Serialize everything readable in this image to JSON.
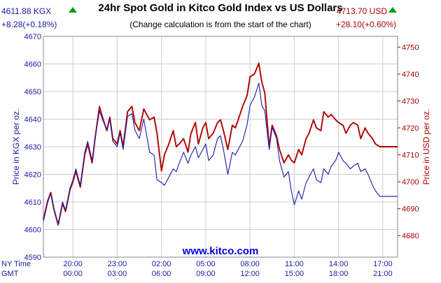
{
  "chart_data": {
    "type": "line",
    "title": "24hr Spot Gold in Kitco Gold Index vs US Dollars",
    "subtitle": "(Change calculation is from the start of the chart)",
    "kgx_price": "4611.88 KGX",
    "kgx_change": "+8.28(+0.18%)",
    "usd_price": "4713.70 USD",
    "usd_change": "+28.10(+0.60%)",
    "ylabel_left": "Price in KGX per oz.",
    "ylabel_right": "Price in USD per oz.",
    "ylim_left": [
      4590,
      4670
    ],
    "ylim_right": [
      4672,
      4754
    ],
    "yticks_left": [
      "4590",
      "4600",
      "4610",
      "4620",
      "4630",
      "4640",
      "4650",
      "4660",
      "4670"
    ],
    "yticks_right": [
      "4680",
      "4690",
      "4700",
      "4710",
      "4720",
      "4730",
      "4740",
      "4750"
    ],
    "xlim_hours": [
      0,
      24
    ],
    "row_label_ny": "NY Time",
    "row_label_gmt": "GMT",
    "xticks": [
      {
        "h": 2,
        "ny": "20:00",
        "gmt": "00:00"
      },
      {
        "h": 5,
        "ny": "23:00",
        "gmt": "03:00"
      },
      {
        "h": 8,
        "ny": "02:00",
        "gmt": "06:00"
      },
      {
        "h": 11,
        "ny": "05:00",
        "gmt": "09:00"
      },
      {
        "h": 14,
        "ny": "08:00",
        "gmt": "12:00"
      },
      {
        "h": 17,
        "ny": "11:00",
        "gmt": "15:00"
      },
      {
        "h": 20,
        "ny": "14:00",
        "gmt": "18:00"
      },
      {
        "h": 23,
        "ny": "17:00",
        "gmt": "21:00"
      }
    ],
    "grid": true,
    "watermark": "www.kitco.com",
    "colors": {
      "kgx": "#1a1aa8",
      "usd": "#b00000",
      "grid": "#cccccc",
      "up_arrow": "#00a000"
    },
    "series": [
      {
        "name": "KGX",
        "axis": "left",
        "x": [
          0,
          0.3,
          0.5,
          0.7,
          1.0,
          1.3,
          1.5,
          1.8,
          2.0,
          2.2,
          2.5,
          2.8,
          3.0,
          3.3,
          3.5,
          3.8,
          4.0,
          4.3,
          4.5,
          4.7,
          5.0,
          5.2,
          5.4,
          5.7,
          6.0,
          6.2,
          6.5,
          6.8,
          7.0,
          7.2,
          7.5,
          7.7,
          8.0,
          8.2,
          8.5,
          8.8,
          9.0,
          9.2,
          9.5,
          9.8,
          10.0,
          10.3,
          10.5,
          10.8,
          11.0,
          11.2,
          11.5,
          11.8,
          12.0,
          12.2,
          12.5,
          12.8,
          13.0,
          13.2,
          13.5,
          13.8,
          14.0,
          14.3,
          14.6,
          14.8,
          15.0,
          15.3,
          15.5,
          15.8,
          16.0,
          16.3,
          16.6,
          16.8,
          17.0,
          17.3,
          17.5,
          17.8,
          18.0,
          18.3,
          18.5,
          18.8,
          19.0,
          19.3,
          19.5,
          19.8,
          20.0,
          20.3,
          20.5,
          20.8,
          21.0,
          21.3,
          21.5,
          21.8,
          22.0,
          22.3,
          22.5,
          22.8,
          23.0,
          23.5,
          24.0
        ],
        "values": [
          4603,
          4610,
          4613,
          4608,
          4602,
          4610,
          4607,
          4615,
          4618,
          4622,
          4616,
          4628,
          4632,
          4625,
          4633,
          4643,
          4640,
          4636,
          4640,
          4632,
          4630,
          4635,
          4629,
          4641,
          4642,
          4636,
          4633,
          4640,
          4634,
          4628,
          4627,
          4618,
          4617,
          4616,
          4619,
          4622,
          4621,
          4624,
          4628,
          4624,
          4627,
          4630,
          4626,
          4629,
          4631,
          4625,
          4627,
          4633,
          4634,
          4629,
          4620,
          4628,
          4627,
          4629,
          4632,
          4638,
          4645,
          4648,
          4653,
          4645,
          4643,
          4629,
          4637,
          4633,
          4625,
          4619,
          4621,
          4614,
          4609,
          4614,
          4611,
          4617,
          4619,
          4622,
          4618,
          4617,
          4622,
          4620,
          4623,
          4625,
          4628,
          4625,
          4624,
          4622,
          4623,
          4624,
          4621,
          4622,
          4620,
          4616,
          4614,
          4612,
          4612,
          4612,
          4612
        ]
      },
      {
        "name": "USD",
        "axis": "right",
        "x": [
          0,
          0.3,
          0.5,
          0.7,
          1.0,
          1.3,
          1.5,
          1.8,
          2.0,
          2.2,
          2.5,
          2.8,
          3.0,
          3.3,
          3.5,
          3.8,
          4.0,
          4.3,
          4.5,
          4.7,
          5.0,
          5.2,
          5.4,
          5.7,
          6.0,
          6.2,
          6.5,
          6.8,
          7.0,
          7.2,
          7.5,
          7.7,
          8.0,
          8.2,
          8.5,
          8.8,
          9.0,
          9.2,
          9.5,
          9.8,
          10.0,
          10.3,
          10.5,
          10.8,
          11.0,
          11.2,
          11.5,
          11.8,
          12.0,
          12.2,
          12.5,
          12.8,
          13.0,
          13.2,
          13.5,
          13.8,
          14.0,
          14.3,
          14.6,
          14.8,
          15.0,
          15.3,
          15.5,
          15.8,
          16.0,
          16.3,
          16.6,
          16.8,
          17.0,
          17.3,
          17.5,
          17.8,
          18.0,
          18.3,
          18.5,
          18.8,
          19.0,
          19.3,
          19.5,
          19.8,
          20.0,
          20.3,
          20.5,
          20.8,
          21.0,
          21.3,
          21.5,
          21.8,
          22.0,
          22.3,
          22.5,
          22.8,
          23.0,
          23.5,
          24.0
        ],
        "values": [
          4686,
          4693,
          4696,
          4690,
          4684,
          4692,
          4689,
          4697,
          4700,
          4704,
          4698,
          4710,
          4714,
          4707,
          4716,
          4728,
          4724,
          4719,
          4724,
          4716,
          4714,
          4719,
          4713,
          4726,
          4728,
          4722,
          4719,
          4727,
          4725,
          4723,
          4724,
          4718,
          4704,
          4710,
          4714,
          4719,
          4713,
          4714,
          4716,
          4711,
          4718,
          4722,
          4714,
          4720,
          4722,
          4716,
          4718,
          4722,
          4723,
          4719,
          4712,
          4721,
          4720,
          4723,
          4728,
          4732,
          4739,
          4740,
          4744,
          4737,
          4733,
          4713,
          4721,
          4717,
          4712,
          4707,
          4710,
          4708,
          4707,
          4712,
          4710,
          4716,
          4718,
          4723,
          4720,
          4719,
          4726,
          4724,
          4725,
          4723,
          4722,
          4721,
          4718,
          4721,
          4722,
          4721,
          4716,
          4720,
          4718,
          4716,
          4714,
          4713,
          4713,
          4713,
          4713
        ]
      }
    ]
  }
}
